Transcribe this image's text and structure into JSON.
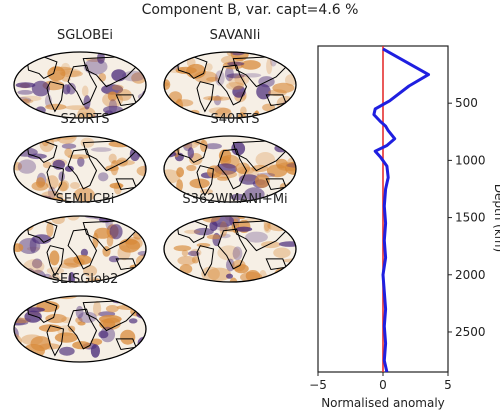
{
  "title": "Component B, var. capt=4.6 %",
  "maps": [
    {
      "label": "SGLOBEi"
    },
    {
      "label": "SAVANIi"
    },
    {
      "label": "S20RTS"
    },
    {
      "label": "S40RTS"
    },
    {
      "label": "SEMUCBi"
    },
    {
      "label": "S362WMANI+Mi"
    },
    {
      "label": "SEISGlob2"
    }
  ],
  "colors": {
    "fast": "#4b2c7a",
    "slow": "#d88a3a",
    "neutral": "#f6efe5",
    "profile": "#1f1fe0",
    "zero_line": "#e53030"
  },
  "chart_data": {
    "type": "line",
    "xlabel": "Normalised anomaly",
    "ylabel": "Depth (km)",
    "xlim": [
      -5,
      5
    ],
    "ylim": [
      2850,
      0
    ],
    "xticks": [
      -5,
      0,
      5
    ],
    "yticks": [
      500,
      1000,
      1500,
      2000,
      2500
    ],
    "reference_line_x": 0,
    "series": [
      {
        "x": [
          0,
          3.5,
          2.0,
          0.5,
          -0.6,
          -0.7,
          -0.2,
          0.2,
          0.4,
          0.9,
          0.3,
          -0.6,
          -0.2,
          0.3,
          0.4,
          0.2,
          0.1,
          0.2,
          0.1,
          0.2,
          0.0,
          0.1,
          0.2,
          0.1,
          0.2,
          0.1,
          0.3
        ],
        "y": [
          25,
          250,
          350,
          480,
          550,
          600,
          660,
          700,
          740,
          810,
          870,
          920,
          970,
          1050,
          1150,
          1250,
          1400,
          1550,
          1700,
          1850,
          2000,
          2150,
          2300,
          2450,
          2600,
          2750,
          2850
        ]
      }
    ]
  }
}
